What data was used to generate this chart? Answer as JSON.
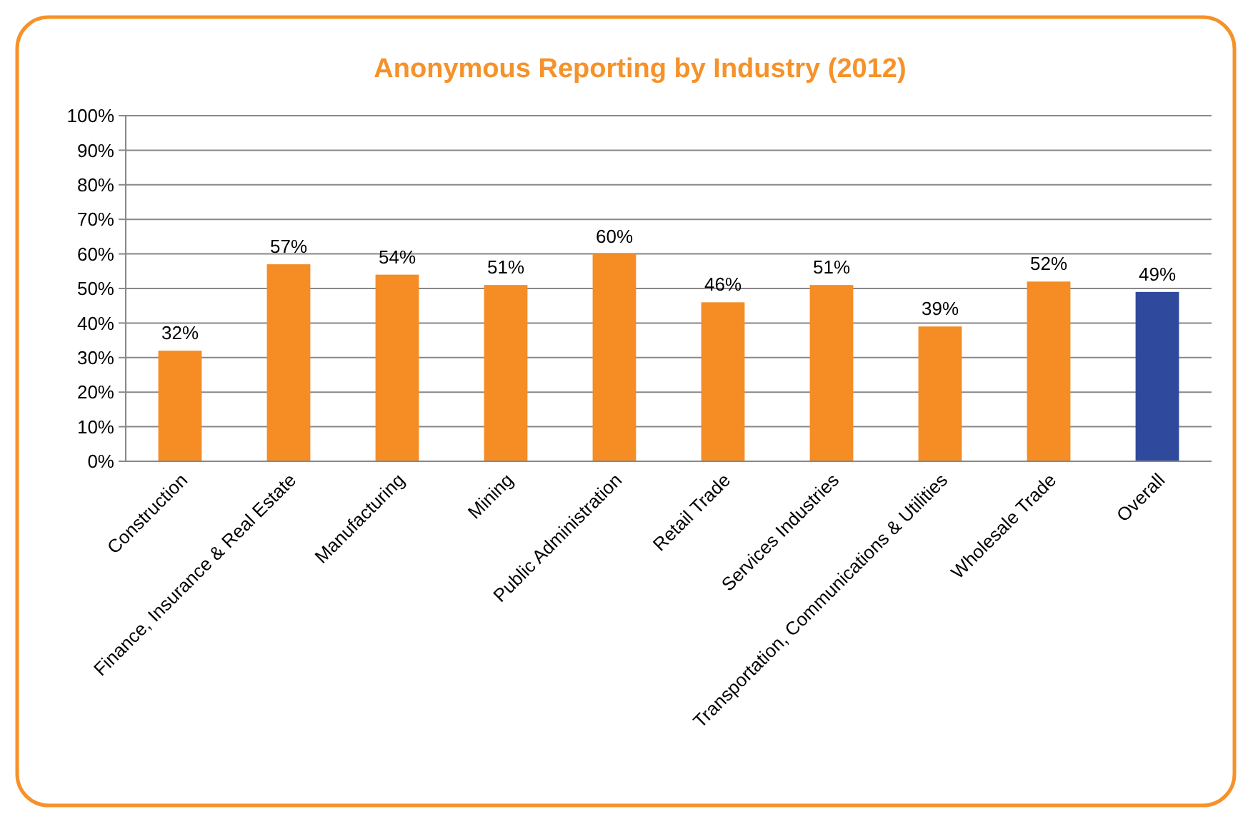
{
  "chart_data": {
    "type": "bar",
    "title": "Anonymous Reporting by Industry (2012)",
    "categories": [
      "Construction",
      "Finance, Insurance & Real Estate",
      "Manufacturing",
      "Mining",
      "Public Administration",
      "Retail Trade",
      "Services Industries",
      "Transportation, Communications & Utilities",
      "Wholesale Trade",
      "Overall"
    ],
    "values": [
      32,
      57,
      54,
      51,
      60,
      46,
      51,
      39,
      52,
      49
    ],
    "colors": [
      "#f58c24",
      "#f58c24",
      "#f58c24",
      "#f58c24",
      "#f58c24",
      "#f58c24",
      "#f58c24",
      "#f58c24",
      "#f58c24",
      "#2f4a9c"
    ],
    "value_labels": [
      "32%",
      "57%",
      "54%",
      "51%",
      "60%",
      "46%",
      "51%",
      "39%",
      "52%",
      "49%"
    ],
    "ylim": [
      0,
      100
    ],
    "yticks": [
      {
        "value": 0,
        "label": "0%"
      },
      {
        "value": 10,
        "label": "10%"
      },
      {
        "value": 20,
        "label": "20%"
      },
      {
        "value": 30,
        "label": "30%"
      },
      {
        "value": 40,
        "label": "40%"
      },
      {
        "value": 50,
        "label": "50%"
      },
      {
        "value": 60,
        "label": "60%"
      },
      {
        "value": 70,
        "label": "70%"
      },
      {
        "value": 80,
        "label": "80%"
      },
      {
        "value": 90,
        "label": "90%"
      },
      {
        "value": 100,
        "label": "100%"
      }
    ],
    "grid": "y"
  }
}
